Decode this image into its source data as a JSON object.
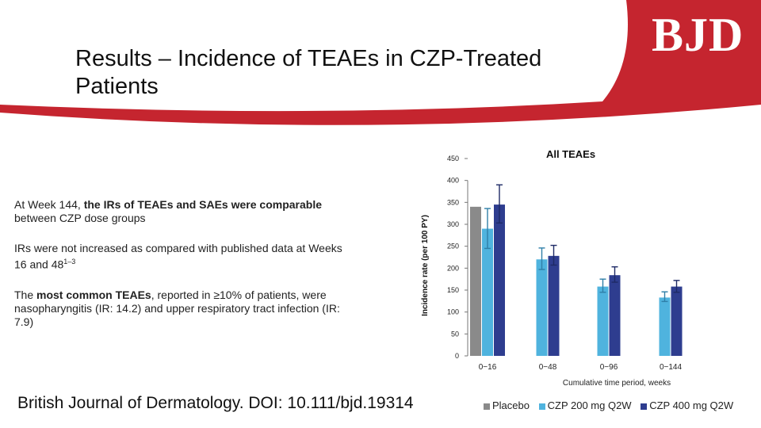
{
  "header": {
    "title_line1": "Results – Incidence of TEAEs in CZP-Treated",
    "title_line2": "Patients",
    "logo_text": "BJD",
    "band_color": "#c5252f"
  },
  "bullets": [
    {
      "before": "At Week 144, ",
      "bold": "the IRs of TEAEs and SAEs were comparable",
      "after": " between CZP dose groups",
      "sup": ""
    },
    {
      "before": "IRs were not increased as compared with published data at Weeks 16 and 48",
      "bold": "",
      "after": "",
      "sup": "1–3"
    },
    {
      "before": "The ",
      "bold": "most common TEAEs",
      "after": ", reported in ≥10% of patients, were nasopharyngitis (IR: 14.2) and upper respiratory tract infection (IR: 7.9)",
      "sup": ""
    }
  ],
  "citation": "British Journal of Dermatology. DOI: 10.111/bjd.19314",
  "chart_data": {
    "type": "bar",
    "title": "All TEAEs",
    "xlabel": "Cumulative time period, weeks",
    "ylabel": "Incidence rate (per 100 PY)",
    "ylim": [
      0,
      450
    ],
    "yticks": [
      0,
      50,
      100,
      150,
      200,
      250,
      300,
      350,
      400,
      450
    ],
    "categories": [
      "0−16",
      "0−48",
      "0−96",
      "0−144"
    ],
    "series": [
      {
        "name": "Placebo",
        "color": "#8a8a8a",
        "values": [
          340,
          null,
          null,
          null
        ],
        "err_low": [
          null,
          null,
          null,
          null
        ],
        "err_high": [
          null,
          null,
          null,
          null
        ]
      },
      {
        "name": "CZP 200 mg Q2W",
        "color": "#4fb3de",
        "values": [
          290,
          220,
          158,
          133
        ],
        "err_low": [
          245,
          197,
          145,
          124
        ],
        "err_high": [
          336,
          246,
          175,
          146
        ]
      },
      {
        "name": "CZP 400 mg Q2W",
        "color": "#2e3d8f",
        "values": [
          345,
          228,
          184,
          158
        ],
        "err_low": [
          303,
          207,
          168,
          145
        ],
        "err_high": [
          390,
          252,
          203,
          172
        ]
      }
    ],
    "legend_position": "bottom"
  }
}
